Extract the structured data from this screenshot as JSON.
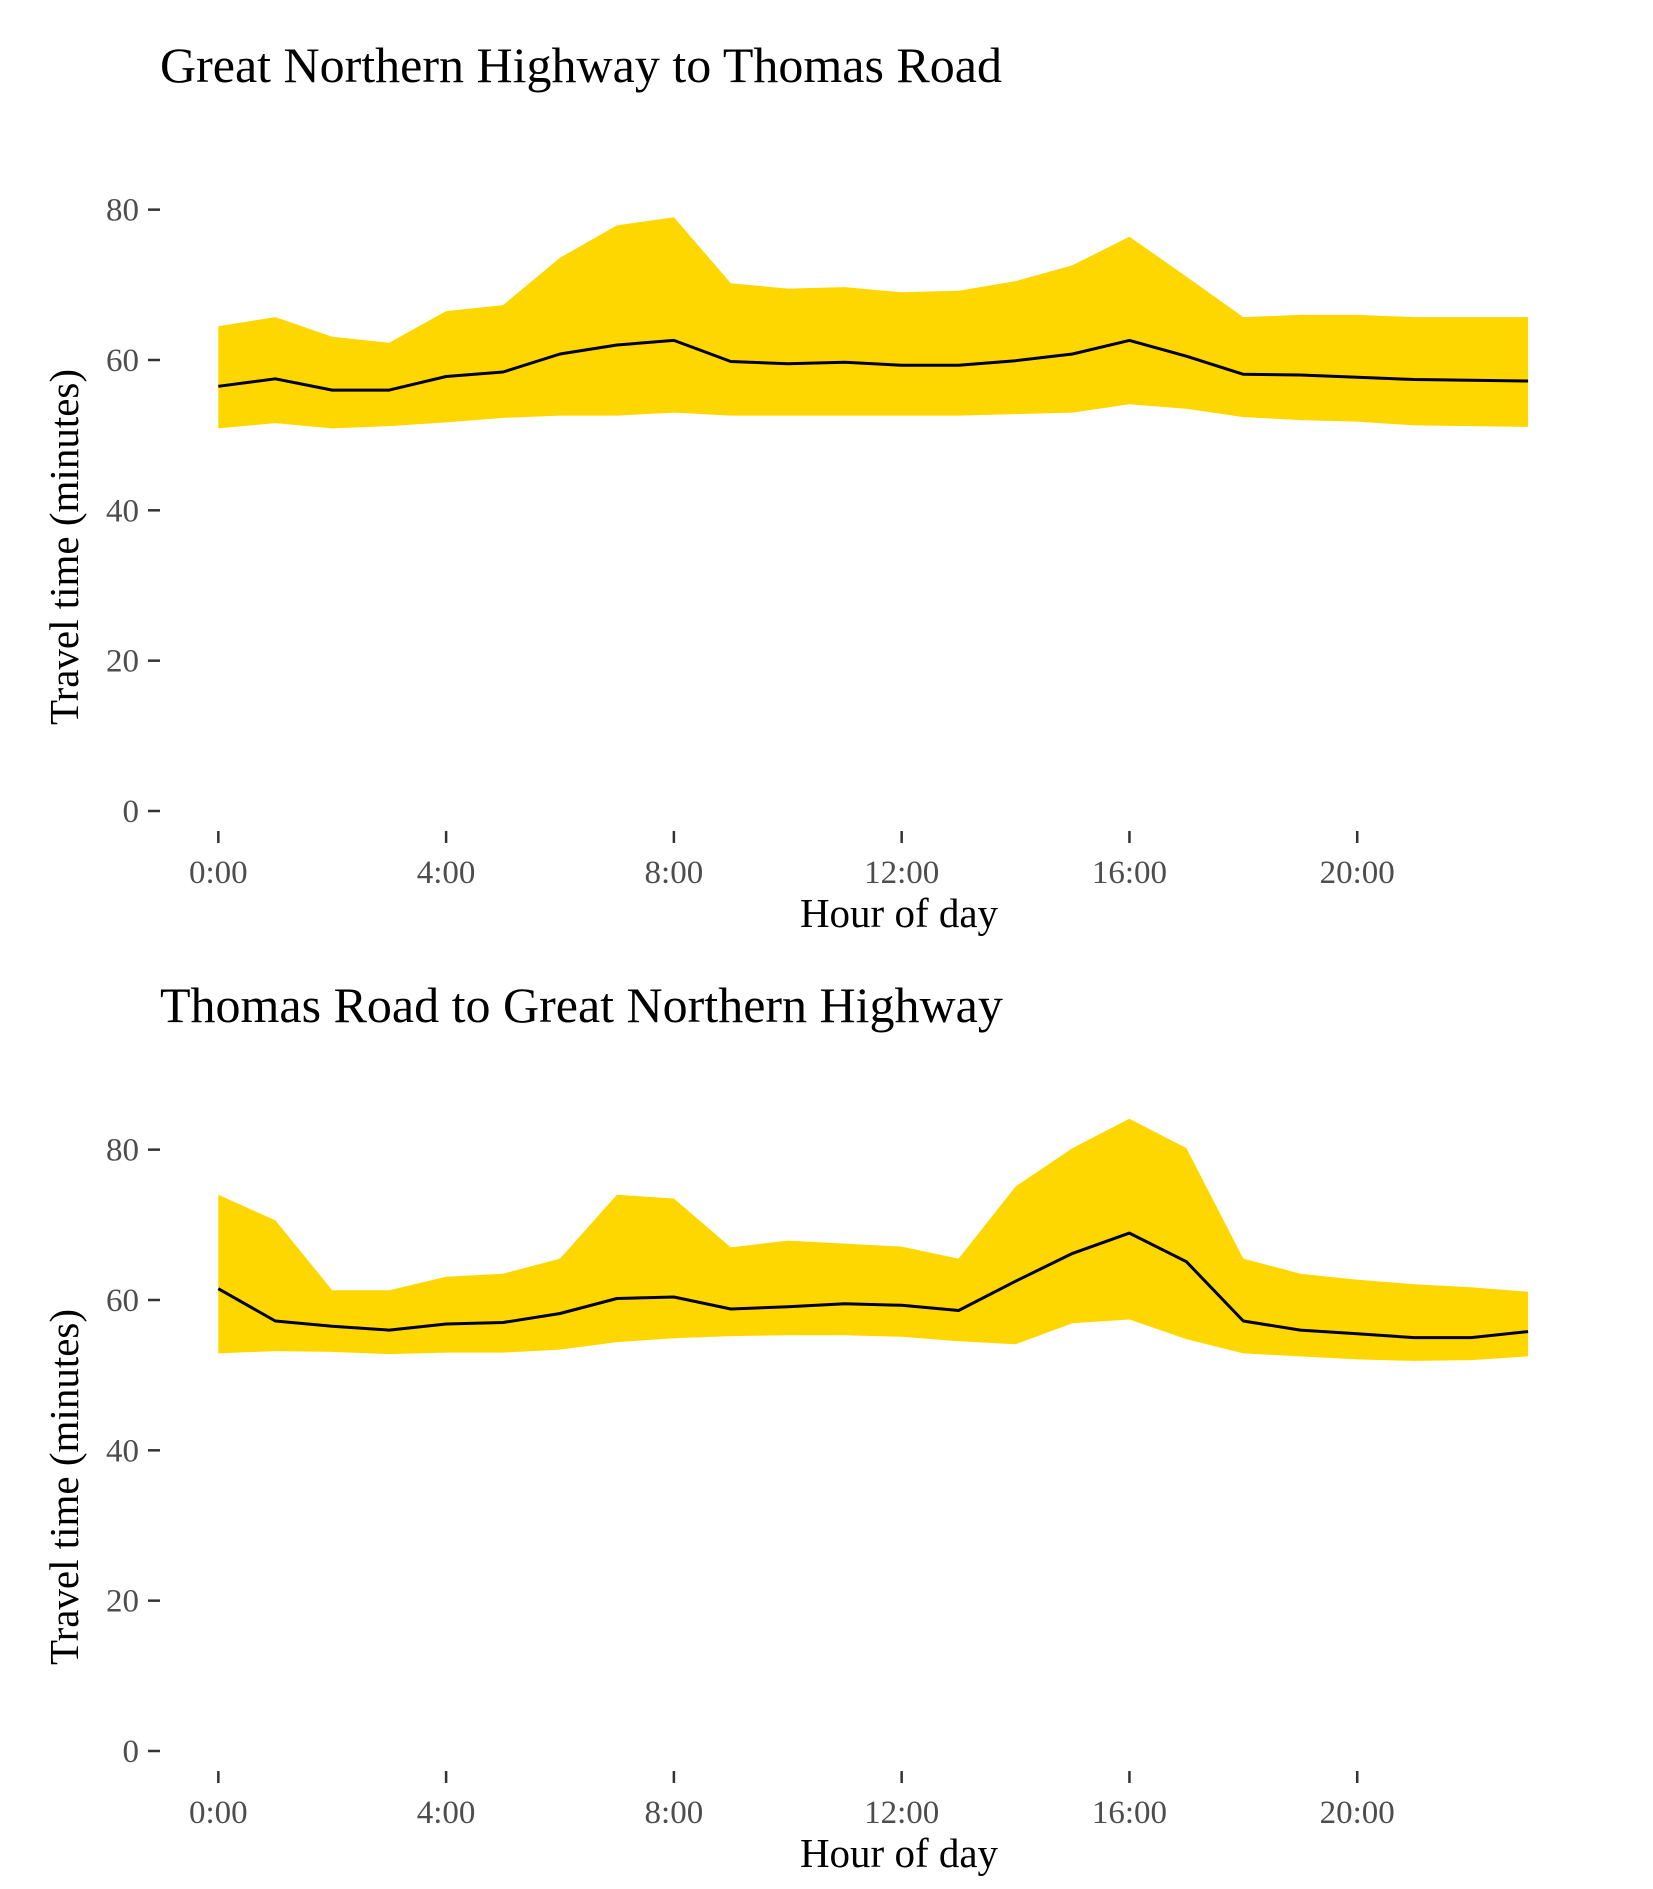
{
  "chart_data": [
    {
      "type": "area",
      "title": "Great Northern Highway to Thomas Road",
      "xlabel": "Hour of day",
      "ylabel": "Travel time (minutes)",
      "x": [
        0,
        1,
        2,
        3,
        4,
        5,
        6,
        7,
        8,
        9,
        10,
        11,
        12,
        13,
        14,
        15,
        16,
        17,
        18,
        19,
        20,
        21,
        22,
        23
      ],
      "x_ticks": [
        {
          "value": 0,
          "label": "0:00"
        },
        {
          "value": 4,
          "label": "4:00"
        },
        {
          "value": 8,
          "label": "8:00"
        },
        {
          "value": 12,
          "label": "12:00"
        },
        {
          "value": 16,
          "label": "16:00"
        },
        {
          "value": 20,
          "label": "20:00"
        }
      ],
      "y_ticks": [
        0,
        20,
        40,
        60,
        80
      ],
      "xlim": [
        -1.2,
        24
      ],
      "ylim": [
        0,
        89
      ],
      "grid": false,
      "legend": "none",
      "series": [
        {
          "role": "band_upper",
          "values": [
            64.5,
            65.7,
            63.1,
            62.3,
            66.5,
            67.3,
            73.6,
            77.9,
            79.0,
            70.2,
            69.5,
            69.7,
            69.0,
            69.2,
            70.5,
            72.6,
            76.4,
            71.1,
            65.7,
            66.0,
            66.0,
            65.7,
            65.7,
            65.7
          ]
        },
        {
          "role": "median",
          "values": [
            56.5,
            57.5,
            56.0,
            56.0,
            57.8,
            58.4,
            60.8,
            62.0,
            62.6,
            59.8,
            59.5,
            59.7,
            59.3,
            59.3,
            59.9,
            60.8,
            62.6,
            60.5,
            58.1,
            58.0,
            57.7,
            57.4,
            57.3,
            57.2
          ]
        },
        {
          "role": "band_lower",
          "values": [
            50.9,
            51.6,
            50.9,
            51.2,
            51.7,
            52.3,
            52.6,
            52.6,
            53.0,
            52.6,
            52.6,
            52.6,
            52.6,
            52.6,
            52.8,
            53.0,
            54.1,
            53.5,
            52.4,
            52.0,
            51.8,
            51.3,
            51.2,
            51.1
          ]
        }
      ],
      "colors": {
        "band": "#FFD700",
        "line": "#000000"
      }
    },
    {
      "type": "area",
      "title": "Thomas Road to Great Northern Highway",
      "xlabel": "Hour of day",
      "ylabel": "Travel time (minutes)",
      "x": [
        0,
        1,
        2,
        3,
        4,
        5,
        6,
        7,
        8,
        9,
        10,
        11,
        12,
        13,
        14,
        15,
        16,
        17,
        18,
        19,
        20,
        21,
        22,
        23
      ],
      "x_ticks": [
        {
          "value": 0,
          "label": "0:00"
        },
        {
          "value": 4,
          "label": "4:00"
        },
        {
          "value": 8,
          "label": "8:00"
        },
        {
          "value": 12,
          "label": "12:00"
        },
        {
          "value": 16,
          "label": "16:00"
        },
        {
          "value": 20,
          "label": "20:00"
        }
      ],
      "y_ticks": [
        0,
        20,
        40,
        60,
        80
      ],
      "xlim": [
        -1.2,
        24
      ],
      "ylim": [
        0,
        89
      ],
      "grid": false,
      "legend": "none",
      "series": [
        {
          "role": "band_upper",
          "values": [
            74.0,
            70.6,
            61.3,
            61.3,
            63.1,
            63.5,
            65.5,
            74.0,
            73.5,
            67.0,
            67.9,
            67.5,
            67.1,
            65.5,
            75.1,
            80.2,
            84.1,
            80.2,
            65.5,
            63.5,
            62.7,
            62.1,
            61.7,
            61.1
          ]
        },
        {
          "role": "median",
          "values": [
            61.5,
            57.2,
            56.5,
            56.0,
            56.8,
            57.0,
            58.2,
            60.2,
            60.4,
            58.8,
            59.1,
            59.5,
            59.3,
            58.6,
            62.5,
            66.2,
            68.9,
            65.1,
            57.2,
            56.0,
            55.5,
            55.0,
            55.0,
            55.8
          ]
        },
        {
          "role": "band_lower",
          "values": [
            52.9,
            53.2,
            53.1,
            52.8,
            53.0,
            53.0,
            53.4,
            54.4,
            54.9,
            55.2,
            55.3,
            55.3,
            55.1,
            54.5,
            54.1,
            56.9,
            57.4,
            54.8,
            52.9,
            52.5,
            52.1,
            51.9,
            52.0,
            52.5
          ]
        }
      ],
      "colors": {
        "band": "#FFD700",
        "line": "#000000"
      }
    }
  ]
}
